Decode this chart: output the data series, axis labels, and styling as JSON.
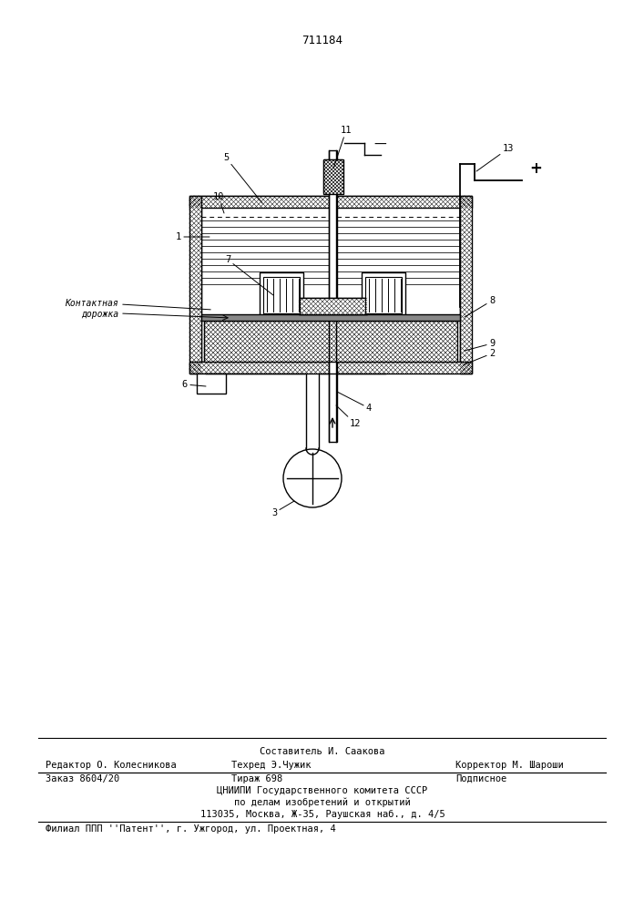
{
  "patent_number": "711184",
  "bg_color": "#ffffff",
  "line_color": "#000000",
  "footer_text_1": "Составитель И. Саакова",
  "footer_text_2a": "Редактор О. Колесникова",
  "footer_text_2b": "Техред Э.Чужик",
  "footer_text_2c": "Корректор М. Шароши",
  "footer_text_3a": "Заказ 8604/20",
  "footer_text_3b": "Тираж 698",
  "footer_text_3c": "Подписное",
  "footer_text_4": "ЦНИИПИ Государственного комитета СССР",
  "footer_text_5": "по делам изобретений и открытий",
  "footer_text_6": "113035, Москва, Ж-35, Раушская наб., д. 4/5",
  "footer_text_7": "Филиал ППП ''Патент'', г. Ужгород, ул. Проектная, 4",
  "label_kontaktnaya": "Контактная\nдорожка",
  "plus_sign": "+",
  "minus_sign": "—"
}
